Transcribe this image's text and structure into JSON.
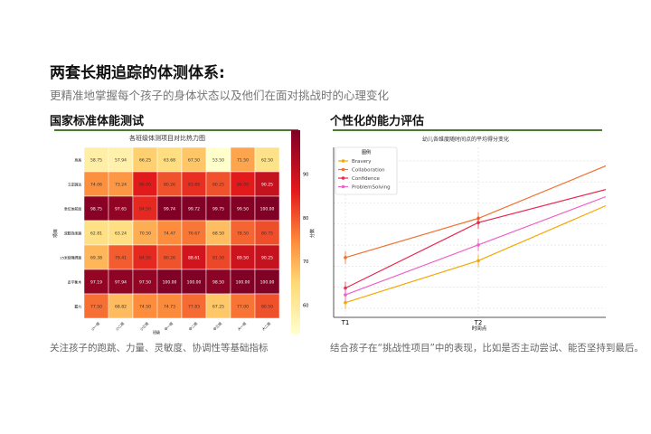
{
  "header": {
    "title": "两套长期追踪的体测体系:",
    "subtitle": "更精准地掌握每个孩子的身体状态以及他们在面对挑战时的心理变化"
  },
  "left": {
    "heading": "国家标准体能测试",
    "caption": "关注孩子的跑跳、力量、灵敏度、协调性等基础指标"
  },
  "right": {
    "heading": "个性化的能力评估",
    "caption": "结合孩子在“挑战性项目”中的表现，比如是否主动尝试、能否坚持到最后。"
  },
  "chart_data": [
    {
      "type": "heatmap",
      "title": "各班级体测项目对比热力图",
      "xlabel": "班级",
      "ylabel": "项目",
      "colorbar_label": "分数",
      "colormap": "YlOrRd",
      "colorbar_ticks": [
        60,
        70,
        80,
        90
      ],
      "colorbar_range": [
        53.5,
        100
      ],
      "columns": [
        "小一班",
        "小二班",
        "小三班",
        "中一班",
        "中二班",
        "中三班",
        "大一班",
        "大二班"
      ],
      "rows": [
        "身高",
        "立定跳远",
        "坐位体前屈",
        "双脚连续跳",
        "15米绕障碍跑",
        "走平衡木",
        "握力"
      ],
      "values": [
        [
          58.75,
          57.94,
          66.25,
          63.68,
          67.5,
          53.5,
          71.5,
          62.5
        ],
        [
          74.06,
          73.24,
          86.0,
          80.26,
          83.89,
          80.25,
          86.0,
          90.25
        ],
        [
          98.75,
          97.65,
          84.5,
          99.74,
          99.72,
          99.75,
          99.5,
          100.0
        ],
        [
          62.81,
          63.24,
          70.5,
          74.47,
          76.67,
          68.5,
          78.5,
          80.75
        ],
        [
          69.38,
          79.41,
          84.5,
          80.26,
          88.61,
          81.5,
          89.5,
          90.25
        ],
        [
          97.19,
          97.94,
          97.5,
          100.0,
          100.0,
          98.5,
          100.0,
          100.0
        ],
        [
          77.5,
          68.82,
          74.5,
          74.73,
          77.83,
          67.25,
          77.0,
          80.5
        ]
      ]
    },
    {
      "type": "line",
      "title": "幼儿各维度随时间点的平均得分变化",
      "xlabel": "时间点",
      "legend_title": "图例",
      "legend": "top-left",
      "grid": true,
      "x": [
        "T1",
        "T2",
        "T3"
      ],
      "xticks": [
        "T1",
        "T2"
      ],
      "series": [
        {
          "name": "Bravery",
          "color": "#f5a800",
          "values": [
            0.27,
            2.26,
            4.87
          ]
        },
        {
          "name": "Collaboration",
          "color": "#f07030",
          "values": [
            2.41,
            4.27,
            6.76
          ]
        },
        {
          "name": "Confidence",
          "color": "#e8284f",
          "values": [
            0.96,
            4.07,
            5.64
          ]
        },
        {
          "name": "ProblemSolving",
          "color": "#f060c8",
          "values": [
            0.64,
            3.01,
            5.3
          ]
        }
      ]
    }
  ]
}
